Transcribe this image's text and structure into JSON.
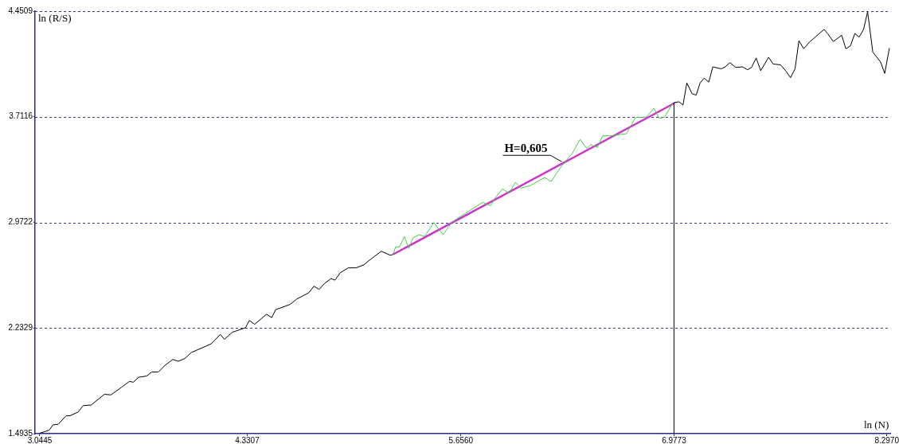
{
  "chart_data": {
    "type": "line",
    "xlabel": "ln (N)",
    "ylabel": "ln (R/S)",
    "xlim": [
      3.015,
      8.32
    ],
    "xticks": [
      3.0445,
      4.3307,
      {
        "value": 5.656,
        "label": "5.6560"
      },
      6.9773,
      {
        "value": 8.297,
        "label": "8.2970"
      }
    ],
    "ylim": [
      1.4935,
      4.4509
    ],
    "yticks": [
      1.4935,
      2.2329,
      2.9722,
      3.7116,
      4.4509
    ],
    "grid": "y",
    "legend": false,
    "marker": "none",
    "line_style": "solid",
    "ref_lines": [
      {
        "axis": "x",
        "value": 6.9773,
        "color": "#000000",
        "line_style": "solid"
      }
    ],
    "annotations": [
      {
        "text": "H=0,605",
        "x": 6.281,
        "y": 3.397
      }
    ],
    "series": [
      {
        "color": "#000000",
        "x": [
          3.045,
          3.102,
          3.126,
          3.159,
          3.208,
          3.232,
          3.281,
          3.314,
          3.363,
          3.445,
          3.486,
          3.551,
          3.6,
          3.625,
          3.657,
          3.707,
          3.739,
          3.78,
          3.821,
          3.87,
          3.903,
          3.943,
          3.985,
          4.107,
          4.164,
          4.189,
          4.238,
          4.32,
          4.344,
          4.377,
          4.45,
          4.483,
          4.507,
          4.598,
          4.638,
          4.712,
          4.745,
          4.777,
          4.81,
          4.851,
          4.875,
          4.908,
          4.957,
          5.006,
          5.055,
          5.096,
          5.162,
          5.218,
          5.235
        ],
        "values": [
          1.497,
          1.517,
          1.555,
          1.559,
          1.619,
          1.619,
          1.644,
          1.69,
          1.694,
          1.769,
          1.765,
          1.818,
          1.859,
          1.854,
          1.888,
          1.897,
          1.925,
          1.925,
          1.972,
          2.013,
          2.0,
          2.019,
          2.062,
          2.122,
          2.188,
          2.154,
          2.203,
          2.235,
          2.286,
          2.259,
          2.329,
          2.306,
          2.361,
          2.399,
          2.436,
          2.479,
          2.526,
          2.503,
          2.545,
          2.579,
          2.568,
          2.62,
          2.654,
          2.654,
          2.676,
          2.714,
          2.77,
          2.742,
          2.748
        ]
      },
      {
        "color": "#44cc44",
        "x": [
          5.235,
          5.251,
          5.276,
          5.305,
          5.333,
          5.358,
          5.398,
          5.431,
          5.488,
          5.545,
          5.603,
          5.676,
          5.725,
          5.791,
          5.84,
          5.864,
          5.913,
          5.954,
          5.995,
          6.028,
          6.085,
          6.175,
          6.216,
          6.265,
          6.297,
          6.346,
          6.395,
          6.437,
          6.461,
          6.502,
          6.535,
          6.584,
          6.682,
          6.739,
          6.804,
          6.853,
          6.886,
          6.919,
          6.968
        ],
        "values": [
          2.748,
          2.799,
          2.802,
          2.873,
          2.789,
          2.864,
          2.886,
          2.873,
          2.971,
          2.886,
          2.977,
          3.03,
          3.065,
          3.112,
          3.089,
          3.137,
          3.206,
          3.178,
          3.253,
          3.212,
          3.23,
          3.286,
          3.258,
          3.343,
          3.39,
          3.455,
          3.553,
          3.489,
          3.516,
          3.497,
          3.578,
          3.578,
          3.593,
          3.706,
          3.709,
          3.771,
          3.7,
          3.709,
          3.803
        ]
      },
      {
        "color": "#000000",
        "x": [
          6.968,
          6.984,
          7.009,
          7.033,
          7.057,
          7.09,
          7.115,
          7.139,
          7.164,
          7.193,
          7.218,
          7.27,
          7.295,
          7.324,
          7.36,
          7.401,
          7.434,
          7.458,
          7.487,
          7.515,
          7.564,
          7.592,
          7.638,
          7.671,
          7.7,
          7.728,
          7.752,
          7.782,
          7.818,
          7.908,
          7.932,
          7.965,
          8.017,
          8.043,
          8.071,
          8.099,
          8.125,
          8.153,
          8.178,
          8.21,
          8.259,
          8.284,
          8.313
        ],
        "values": [
          3.803,
          3.813,
          3.816,
          3.794,
          3.948,
          3.872,
          3.863,
          3.948,
          3.982,
          3.954,
          4.061,
          4.047,
          4.061,
          4.09,
          4.057,
          4.061,
          4.041,
          4.057,
          4.123,
          4.034,
          4.128,
          4.081,
          4.075,
          4.032,
          3.985,
          4.047,
          4.244,
          4.188,
          4.235,
          4.323,
          4.291,
          4.238,
          4.282,
          4.188,
          4.207,
          4.295,
          4.269,
          4.323,
          4.447,
          4.165,
          4.094,
          4.015,
          4.192
        ]
      },
      {
        "color": "#cc33cc",
        "x": [
          5.235,
          6.984
        ],
        "values": [
          2.748,
          3.809
        ]
      }
    ]
  }
}
